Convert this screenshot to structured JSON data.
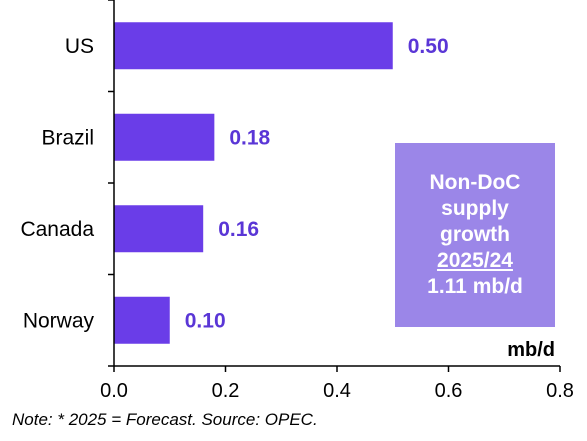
{
  "colors": {
    "bar": "#6a3de8",
    "value_label": "#5a36d6",
    "info_box_bg": "#9b86e8",
    "axis": "#000000"
  },
  "chart_data": {
    "type": "bar",
    "orientation": "horizontal",
    "categories": [
      "US",
      "Brazil",
      "Canada",
      "Norway"
    ],
    "values": [
      0.5,
      0.18,
      0.16,
      0.1
    ],
    "value_labels": [
      "0.50",
      "0.18",
      "0.16",
      "0.10"
    ],
    "xlim": [
      0.0,
      0.8
    ],
    "xticks": [
      0.0,
      0.2,
      0.4,
      0.6,
      0.8
    ],
    "xtick_labels": [
      "0.0",
      "0.2",
      "0.4",
      "0.6",
      "0.8"
    ],
    "unit_label": "mb/d",
    "grid": false
  },
  "info_box": {
    "line1": "Non-DoC",
    "line2": "supply",
    "line3": "growth",
    "line4": "2025/24",
    "line5": "1.11 mb/d"
  },
  "note": "Note: * 2025 = Forecast. Source: OPEC."
}
